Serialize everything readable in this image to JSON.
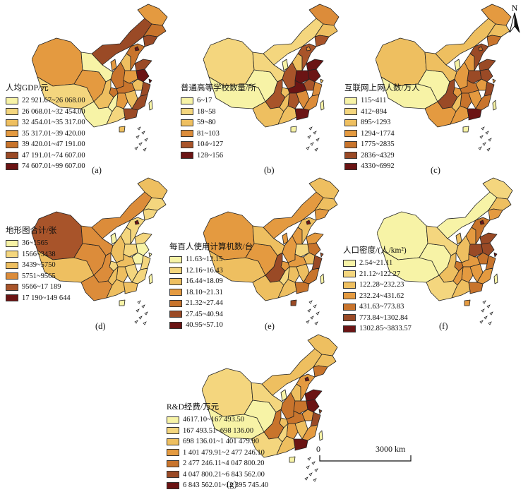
{
  "north_arrow": {
    "label": "N",
    "icon": "north-arrow-icon"
  },
  "scale_bar": {
    "start": "0",
    "end": "3000 km"
  },
  "panels": [
    {
      "id": "a",
      "label": "(a)",
      "legend_title": "人均GDP/元",
      "classes": [
        "22 921.67~26 068.00",
        "26 068.01~32 454.00",
        "32 454.01~35 317.00",
        "35 317.01~39 420.00",
        "39 420.01~47 191.00",
        "47 191.01~74 607.00",
        "74 607.01~99 607.00"
      ],
      "colors": [
        "#f7f3a6",
        "#f4d67e",
        "#eebf60",
        "#e49a40",
        "#c8742c",
        "#9a4a26",
        "#6b1414"
      ]
    },
    {
      "id": "b",
      "label": "(b)",
      "legend_title": "普通高等学校数量/所",
      "classes": [
        "6~17",
        "18~58",
        "59~80",
        "81~103",
        "104~127",
        "128~156"
      ],
      "colors": [
        "#f7f3a6",
        "#f4d67e",
        "#eebf60",
        "#dc8c3a",
        "#a8542a",
        "#6b1414"
      ]
    },
    {
      "id": "c",
      "label": "(c)",
      "legend_title": "互联网上网人数/万人",
      "classes": [
        "115~411",
        "412~894",
        "895~1293",
        "1294~1774",
        "1775~2835",
        "2836~4329",
        "4330~6992"
      ],
      "colors": [
        "#f7f3a6",
        "#f4d67e",
        "#eebf60",
        "#e49a40",
        "#c8742c",
        "#9a4a26",
        "#6b1414"
      ]
    },
    {
      "id": "d",
      "label": "(d)",
      "legend_title": "地形图合计/张",
      "classes": [
        "36~1565",
        "1566~3438",
        "3439~5750",
        "5751~9565",
        "9566~17 189",
        "17 190~149 644"
      ],
      "colors": [
        "#f7f3a6",
        "#f4d67e",
        "#eebf60",
        "#dc8c3a",
        "#a8542a",
        "#6b1414"
      ]
    },
    {
      "id": "e",
      "label": "(e)",
      "legend_title": "每百人使用计算机数/台",
      "classes": [
        "11.63~12.15",
        "12.16~16.43",
        "16.44~18.09",
        "18.10~21.31",
        "21.32~27.44",
        "27.45~40.94",
        "40.95~57.10"
      ],
      "colors": [
        "#f7f3a6",
        "#f4d67e",
        "#eebf60",
        "#e49a40",
        "#c8742c",
        "#9a4a26",
        "#6b1414"
      ]
    },
    {
      "id": "f",
      "label": "(f)",
      "legend_title": "人口密度/(人/km²)",
      "classes": [
        "2.54~21.11",
        "21.12~122.27",
        "122.28~232.23",
        "232.24~431.62",
        "431.63~773.83",
        "773.84~1302.84",
        "1302.85~3833.57"
      ],
      "colors": [
        "#f7f3a6",
        "#f4d67e",
        "#eebf60",
        "#e49a40",
        "#c8742c",
        "#9a4a26",
        "#6b1414"
      ]
    },
    {
      "id": "g",
      "label": "(g)",
      "legend_title": "R&D经费/万元",
      "classes": [
        "4617.10~167 493.50",
        "167 493.51~698 136.00",
        "698 136.01~1 401 479.90",
        "1 401 479.91~2 477 246.10",
        "2 477 246.11~4 047 800.20",
        "4 047 800.21~6 843 562.00",
        "6 843 562.01~12 395 745.40"
      ],
      "colors": [
        "#f7f3a6",
        "#f4d67e",
        "#eebf60",
        "#e49a40",
        "#c8742c",
        "#9a4a26",
        "#6b1414"
      ]
    }
  ]
}
